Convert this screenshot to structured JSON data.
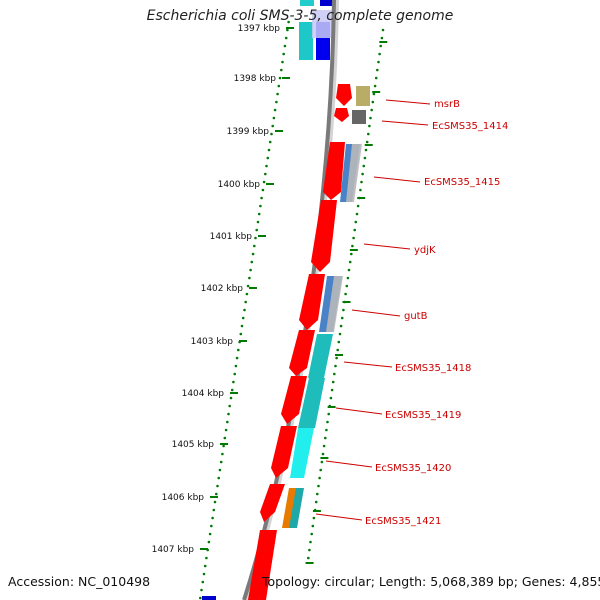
{
  "title": "Escherichia coli SMS-3-5, complete genome",
  "accession": "Accession: NC_010498",
  "summary": "Topology: circular; Length: 5,068,389 bp; Genes: 4,855",
  "colors": {
    "backbone": "#888888",
    "tick_scale": "#007a00",
    "gene_forward": "#ff0000",
    "label": "#cc0000"
  },
  "tick_labels": [
    {
      "kbp": 1397,
      "text": "1397 kbp"
    },
    {
      "kbp": 1398,
      "text": "1398 kbp"
    },
    {
      "kbp": 1399,
      "text": "1399 kbp"
    },
    {
      "kbp": 1400,
      "text": "1400 kbp"
    },
    {
      "kbp": 1401,
      "text": "1401 kbp"
    },
    {
      "kbp": 1402,
      "text": "1402 kbp"
    },
    {
      "kbp": 1403,
      "text": "1403 kbp"
    },
    {
      "kbp": 1404,
      "text": "1404 kbp"
    },
    {
      "kbp": 1405,
      "text": "1405 kbp"
    },
    {
      "kbp": 1406,
      "text": "1406 kbp"
    },
    {
      "kbp": 1407,
      "text": "1407 kbp"
    }
  ],
  "gene_labels": [
    {
      "name": "msrB"
    },
    {
      "name": "EcSMS35_1414"
    },
    {
      "name": "EcSMS35_1415"
    },
    {
      "name": "ydjK"
    },
    {
      "name": "gutB"
    },
    {
      "name": "EcSMS35_1418"
    },
    {
      "name": "EcSMS35_1419"
    },
    {
      "name": "EcSMS35_1420"
    },
    {
      "name": "EcSMS35_1421"
    }
  ]
}
